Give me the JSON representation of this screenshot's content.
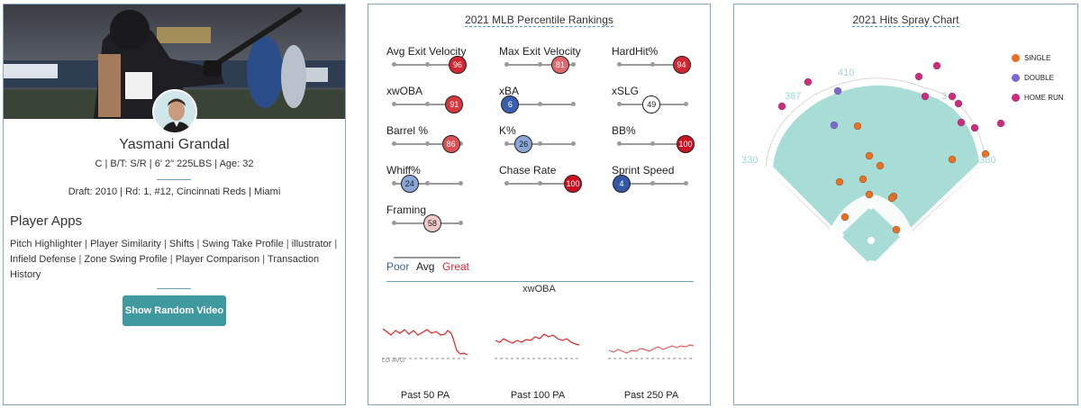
{
  "player": {
    "name": "Yasmani Grandal",
    "info": "C | B/T: S/R | 6' 2\" 225LBS | Age: 32",
    "draft": "Draft: 2010 | Rd: 1, #12, Cincinnati Reds | Miami",
    "apps_title": "Player Apps",
    "apps": [
      "Pitch Highlighter",
      "Player Similarity",
      "Shifts",
      "Swing Take Profile",
      "illustrator",
      "Infield Defense",
      "Zone Swing Profile",
      "Player Comparison",
      "Transaction History"
    ],
    "video_button": "Show Random Video"
  },
  "percentile": {
    "title": "2021 MLB Percentile Rankings",
    "metrics": [
      {
        "label": "Avg Exit Velocity",
        "value": 96,
        "color": "#d22630"
      },
      {
        "label": "Max Exit Velocity",
        "value": 81,
        "color": "#e0696d"
      },
      {
        "label": "HardHit%",
        "value": 94,
        "color": "#d22630"
      },
      {
        "label": "xwOBA",
        "value": 91,
        "color": "#d7383f"
      },
      {
        "label": "xBA",
        "value": 6,
        "color": "#3a5fb0"
      },
      {
        "label": "xSLG",
        "value": 49,
        "color": "#ffffff"
      },
      {
        "label": "Barrel %",
        "value": 86,
        "color": "#db4f55"
      },
      {
        "label": "K%",
        "value": 26,
        "color": "#8aa6d8"
      },
      {
        "label": "BB%",
        "value": 100,
        "color": "#cc1020"
      },
      {
        "label": "Whiff%",
        "value": 24,
        "color": "#8aa6d8"
      },
      {
        "label": "Chase Rate",
        "value": 100,
        "color": "#cc1020"
      },
      {
        "label": "Sprint Speed",
        "value": 4,
        "color": "#3458a8"
      },
      {
        "label": "Framing",
        "value": 58,
        "color": "#f2c9c9"
      }
    ],
    "legend": {
      "poor": "Poor",
      "avg": "Avg",
      "great": "Great"
    },
    "xwoba_title": "xwOBA",
    "lg_avg": "LG AVG",
    "sparks": [
      "Past 50 PA",
      "Past 100 PA",
      "Past 250 PA"
    ]
  },
  "spray": {
    "title": "2021 Hits Spray Chart",
    "legend": [
      {
        "label": "SINGLE",
        "color": "#e8701f"
      },
      {
        "label": "DOUBLE",
        "color": "#7b68d6"
      },
      {
        "label": "HOME RUN",
        "color": "#cf2a7e"
      }
    ],
    "distances": [
      "387",
      "410",
      "3",
      "330",
      "330"
    ]
  },
  "colors": {
    "accent": "#3f9aa0",
    "border": "#7fa6c4",
    "poor": "#3a5fb0",
    "great": "#d22630"
  }
}
